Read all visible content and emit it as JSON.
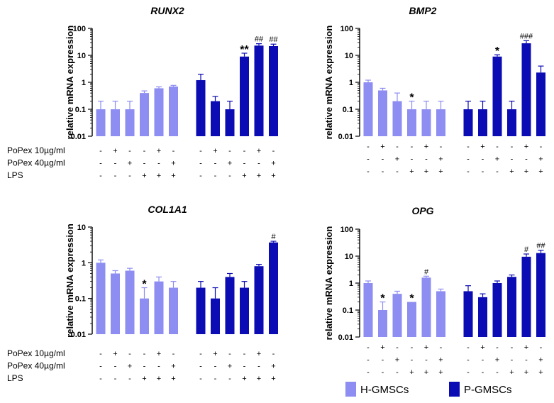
{
  "chart_data": {
    "type": "bar",
    "scale": "log",
    "ylabel": "relative mRNA expression",
    "ylim": [
      0.01,
      100
    ],
    "row_labels": [
      "PoPex 10µg/ml",
      "PoPex 40µg/ml",
      "LPS"
    ],
    "treatment_signs": [
      [
        "-",
        "+",
        "-",
        "-",
        "+",
        "-"
      ],
      [
        "-",
        "-",
        "+",
        "-",
        "-",
        "+"
      ],
      [
        "-",
        "-",
        "-",
        "+",
        "+",
        "+"
      ]
    ],
    "legend": [
      {
        "name": "H-GMSCs",
        "color": "#8e8ef2"
      },
      {
        "name": "P-GMSCs",
        "color": "#0c0cb4"
      }
    ],
    "panels": [
      {
        "title": "RUNX2",
        "tick_labels": [
          "100",
          "10",
          "1",
          "0.1",
          "0.01"
        ],
        "ymax": 100,
        "show_row_labels": true,
        "series": [
          {
            "name": "H-GMSCs",
            "values": [
              0.1,
              0.1,
              0.1,
              0.4,
              0.6,
              0.7
            ],
            "errors": [
              0.1,
              0.1,
              0.1,
              0.08,
              0.08,
              0.07
            ],
            "annotations": [
              "",
              "",
              "",
              "",
              "",
              ""
            ]
          },
          {
            "name": "P-GMSCs",
            "values": [
              1.2,
              0.2,
              0.1,
              9,
              23,
              22
            ],
            "errors": [
              0.8,
              0.1,
              0.1,
              3,
              4,
              4
            ],
            "annotations": [
              "",
              "",
              "",
              "**",
              "##",
              "##"
            ]
          }
        ]
      },
      {
        "title": "BMP2",
        "tick_labels": [
          "100",
          "10",
          "1",
          "0.1",
          "0.01"
        ],
        "ymax": 100,
        "show_row_labels": false,
        "series": [
          {
            "name": "H-GMSCs",
            "values": [
              1.0,
              0.5,
              0.2,
              0.1,
              0.1,
              0.1
            ],
            "errors": [
              0.2,
              0.1,
              0.2,
              0.1,
              0.1,
              0.1
            ],
            "annotations": [
              "",
              "",
              "",
              "*",
              "",
              ""
            ]
          },
          {
            "name": "P-GMSCs",
            "values": [
              0.1,
              0.1,
              9,
              0.1,
              28,
              2.3
            ],
            "errors": [
              0.1,
              0.1,
              1.5,
              0.1,
              7,
              1.7
            ],
            "annotations": [
              "",
              "",
              "*",
              "",
              "###",
              ""
            ]
          }
        ]
      },
      {
        "title": "COL1A1",
        "tick_labels": [
          "10",
          "1",
          "0.1",
          "0.01"
        ],
        "ymax": 10,
        "show_row_labels": true,
        "series": [
          {
            "name": "H-GMSCs",
            "values": [
              1.0,
              0.5,
              0.6,
              0.1,
              0.3,
              0.2
            ],
            "errors": [
              0.2,
              0.1,
              0.1,
              0.1,
              0.1,
              0.1
            ],
            "annotations": [
              "",
              "",
              "",
              "*",
              "",
              ""
            ]
          },
          {
            "name": "P-GMSCs",
            "values": [
              0.2,
              0.1,
              0.4,
              0.2,
              0.8,
              3.7
            ],
            "errors": [
              0.1,
              0.1,
              0.1,
              0.1,
              0.1,
              0.3
            ],
            "annotations": [
              "",
              "",
              "",
              "",
              "",
              "#"
            ]
          }
        ]
      },
      {
        "title": "OPG",
        "tick_labels": [
          "100",
          "10",
          "1",
          "0.1",
          "0.01"
        ],
        "ymax": 100,
        "show_row_labels": false,
        "series": [
          {
            "name": "H-GMSCs",
            "values": [
              1.0,
              0.1,
              0.4,
              0.2,
              1.6,
              0.5
            ],
            "errors": [
              0.2,
              0.1,
              0.1,
              0.0,
              0.2,
              0.1
            ],
            "annotations": [
              "",
              "*",
              "",
              "*",
              "#",
              ""
            ]
          },
          {
            "name": "P-GMSCs",
            "values": [
              0.5,
              0.3,
              1.0,
              1.7,
              9.5,
              13
            ],
            "errors": [
              0.3,
              0.1,
              0.2,
              0.3,
              2.5,
              3.5
            ],
            "annotations": [
              "",
              "",
              "",
              "",
              "#",
              "##"
            ]
          }
        ]
      }
    ]
  }
}
